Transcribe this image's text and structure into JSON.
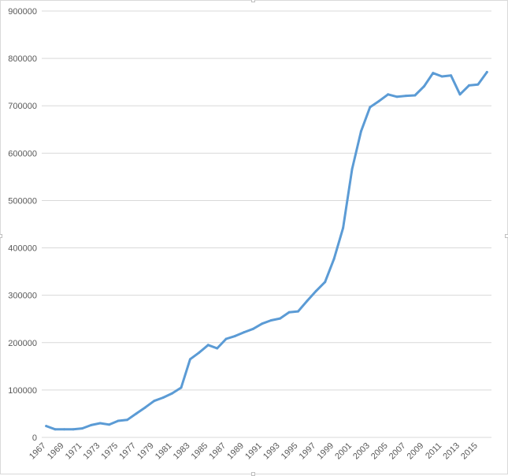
{
  "chart_data": {
    "type": "line",
    "title": "",
    "xlabel": "",
    "ylabel": "",
    "x": [
      1967,
      1968,
      1969,
      1970,
      1971,
      1972,
      1973,
      1974,
      1975,
      1976,
      1977,
      1978,
      1979,
      1980,
      1981,
      1982,
      1983,
      1984,
      1985,
      1986,
      1987,
      1988,
      1989,
      1990,
      1991,
      1992,
      1993,
      1994,
      1995,
      1996,
      1997,
      1998,
      1999,
      2000,
      2001,
      2002,
      2003,
      2004,
      2005,
      2006,
      2007,
      2008,
      2009,
      2010,
      2011,
      2012,
      2013,
      2014,
      2015,
      2016
    ],
    "x_tick_labels": [
      "1967",
      "1969",
      "1971",
      "1973",
      "1975",
      "1977",
      "1979",
      "1981",
      "1983",
      "1985",
      "1987",
      "1989",
      "1991",
      "1993",
      "1995",
      "1997",
      "1999",
      "2001",
      "2003",
      "2005",
      "2007",
      "2009",
      "2011",
      "2013",
      "2015"
    ],
    "y_tick_labels": [
      "0",
      "100000",
      "200000",
      "300000",
      "400000",
      "500000",
      "600000",
      "700000",
      "800000",
      "900000"
    ],
    "ylim": [
      0,
      900000
    ],
    "grid": true,
    "legend": "none",
    "series": [
      {
        "color": "#5b9bd5",
        "values": [
          24000,
          17000,
          17000,
          17000,
          19000,
          26000,
          30000,
          27000,
          35000,
          37000,
          50000,
          63000,
          77000,
          84000,
          93000,
          105000,
          165000,
          179000,
          195000,
          188000,
          208000,
          214000,
          222000,
          229000,
          240000,
          247000,
          251000,
          264000,
          266000,
          288000,
          309000,
          328000,
          377000,
          442000,
          566000,
          646000,
          697000,
          710000,
          724000,
          719000,
          721000,
          722000,
          741000,
          769000,
          762000,
          764000,
          724000,
          743000,
          745000,
          771000
        ]
      }
    ]
  }
}
